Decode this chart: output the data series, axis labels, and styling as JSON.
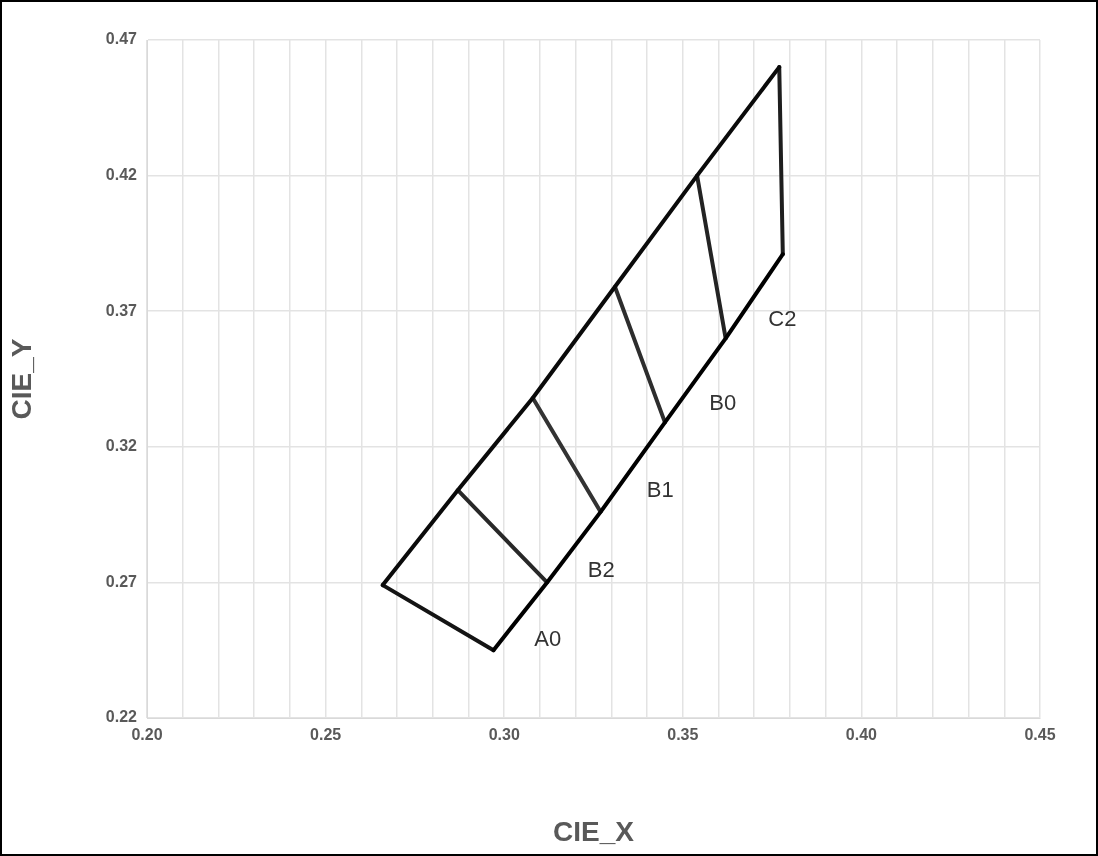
{
  "chart_data": {
    "type": "line",
    "xlabel": "CIE_X",
    "ylabel": "CIE_Y",
    "series": [
      {
        "color": "#000000",
        "x": [
          0.297,
          0.312,
          0.327,
          0.345,
          0.362,
          0.378
        ],
        "values": [
          0.245,
          0.27,
          0.296,
          0.329,
          0.36,
          0.391
        ]
      },
      {
        "color": "#0a0a0a",
        "x": [
          0.266,
          0.287,
          0.308,
          0.331,
          0.354,
          0.377
        ],
        "values": [
          0.269,
          0.304,
          0.338,
          0.379,
          0.42,
          0.46
        ]
      },
      {
        "color": "#141414",
        "x": [
          0.266,
          0.297
        ],
        "values": [
          0.269,
          0.245
        ]
      },
      {
        "color": "#1e1e1e",
        "x": [
          0.377,
          0.378
        ],
        "values": [
          0.46,
          0.391
        ]
      },
      {
        "color": "#282828",
        "x": [
          0.287,
          0.312
        ],
        "values": [
          0.304,
          0.27
        ]
      },
      {
        "color": "#333333",
        "x": [
          0.308,
          0.327
        ],
        "values": [
          0.338,
          0.296
        ]
      },
      {
        "color": "#2d2d2d",
        "x": [
          0.331,
          0.345
        ],
        "values": [
          0.379,
          0.329
        ]
      },
      {
        "color": "#232323",
        "x": [
          0.354,
          0.362
        ],
        "values": [
          0.42,
          0.36
        ]
      }
    ],
    "annotations": [
      {
        "text": "A0",
        "x": 0.3045,
        "y": 0.2575
      },
      {
        "text": "B2",
        "x": 0.3195,
        "y": 0.283
      },
      {
        "text": "B1",
        "x": 0.336,
        "y": 0.3125
      },
      {
        "text": "B0",
        "x": 0.3535,
        "y": 0.3445
      },
      {
        "text": "C2",
        "x": 0.37,
        "y": 0.3755
      }
    ],
    "xlim": [
      0.2,
      0.45
    ],
    "xticks": [
      {
        "value": 0.2,
        "label": "0.20"
      },
      {
        "value": 0.21,
        "label": null
      },
      {
        "value": 0.22,
        "label": null
      },
      {
        "value": 0.23,
        "label": null
      },
      {
        "value": 0.24,
        "label": null
      },
      {
        "value": 0.25,
        "label": "0.25"
      },
      {
        "value": 0.26,
        "label": null
      },
      {
        "value": 0.27,
        "label": null
      },
      {
        "value": 0.28,
        "label": null
      },
      {
        "value": 0.29,
        "label": null
      },
      {
        "value": 0.3,
        "label": "0.30"
      },
      {
        "value": 0.31,
        "label": null
      },
      {
        "value": 0.32,
        "label": null
      },
      {
        "value": 0.33,
        "label": null
      },
      {
        "value": 0.34,
        "label": null
      },
      {
        "value": 0.35,
        "label": "0.35"
      },
      {
        "value": 0.36,
        "label": null
      },
      {
        "value": 0.37,
        "label": null
      },
      {
        "value": 0.38,
        "label": null
      },
      {
        "value": 0.39,
        "label": null
      },
      {
        "value": 0.4,
        "label": "0.40"
      },
      {
        "value": 0.41,
        "label": null
      },
      {
        "value": 0.42,
        "label": null
      },
      {
        "value": 0.43,
        "label": null
      },
      {
        "value": 0.44,
        "label": null
      },
      {
        "value": 0.45,
        "label": "0.45"
      }
    ],
    "ylim": [
      0.22,
      0.47
    ],
    "yticks": [
      0.22,
      0.27,
      0.32,
      0.37,
      0.42,
      0.47
    ],
    "grid": true,
    "legend": false,
    "marker": "none",
    "line_style": "solid"
  }
}
